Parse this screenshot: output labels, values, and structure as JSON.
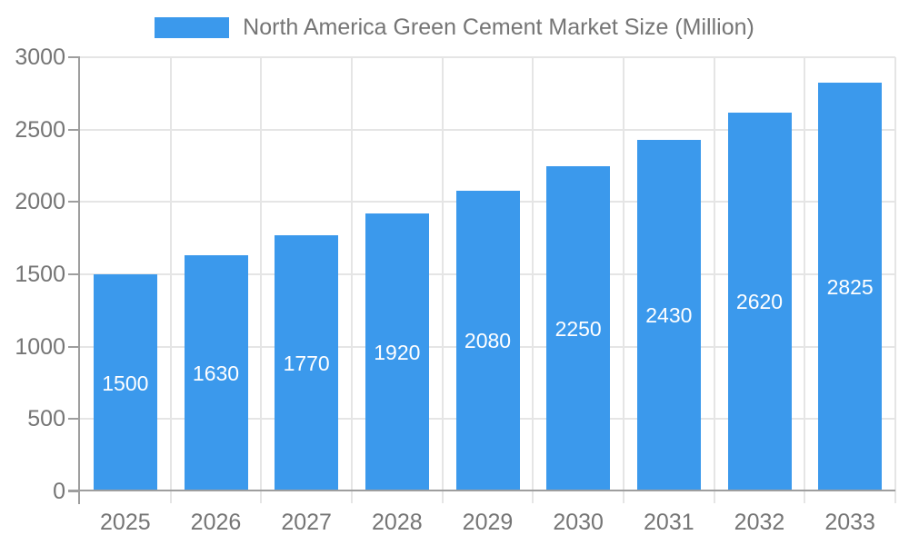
{
  "legend": {
    "label": "North America Green Cement Market Size (Million)"
  },
  "chart_data": {
    "type": "bar",
    "title": "North America Green Cement Market Size (Million)",
    "categories": [
      "2025",
      "2026",
      "2027",
      "2028",
      "2029",
      "2030",
      "2031",
      "2032",
      "2033"
    ],
    "values": [
      1500,
      1630,
      1770,
      1920,
      2080,
      2250,
      2430,
      2620,
      2825
    ],
    "value_labels": [
      "1500",
      "1630",
      "1770",
      "1920",
      "2080",
      "2250",
      "2430",
      "2620",
      "2825"
    ],
    "xlabel": "",
    "ylabel": "",
    "ylim": [
      0,
      3000
    ],
    "y_ticks": [
      0,
      500,
      1000,
      1500,
      2000,
      2500,
      3000
    ],
    "y_tick_labels": [
      "0",
      "500",
      "1000",
      "1500",
      "2000",
      "2500",
      "3000"
    ],
    "grid": true,
    "legend_position": "top"
  },
  "style": {
    "bar_color": "#3B99EC",
    "value_label_color": "#FFFFFF",
    "axis_color": "#9E9E9E",
    "grid_color": "#E5E5E5",
    "text_color": "#757575",
    "background": "#FFFFFF"
  }
}
